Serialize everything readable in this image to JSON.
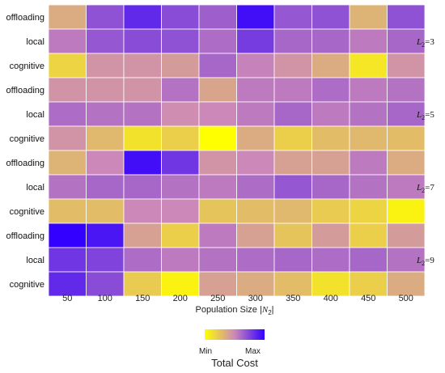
{
  "chart_data": {
    "type": "heatmap",
    "x_categories": [
      "50",
      "100",
      "150",
      "200",
      "250",
      "300",
      "350",
      "400",
      "450",
      "500"
    ],
    "row_categories": [
      "offloading",
      "local",
      "cognitive"
    ],
    "xlabel_prefix": "Population Size |",
    "xlabel_var": "N",
    "xlabel_sub": "2",
    "xlabel_suffix": "|",
    "panel_var": "L",
    "panel_sub": "2",
    "value_scale": "normalized cost, 0 = Min, 1 = Max",
    "panels": [
      {
        "label_value": "=3",
        "rows": [
          [
            0.35,
            0.7,
            0.85,
            0.72,
            0.65,
            0.95,
            0.68,
            0.7,
            0.32,
            0.7
          ],
          [
            0.55,
            0.68,
            0.72,
            0.7,
            0.6,
            0.78,
            0.62,
            0.62,
            0.55,
            0.62
          ],
          [
            0.18,
            0.45,
            0.45,
            0.42,
            0.62,
            0.52,
            0.45,
            0.35,
            0.1,
            0.45
          ]
        ]
      },
      {
        "label_value": "=5",
        "rows": [
          [
            0.45,
            0.45,
            0.45,
            0.58,
            0.38,
            0.55,
            0.55,
            0.6,
            0.55,
            0.58
          ],
          [
            0.6,
            0.58,
            0.58,
            0.48,
            0.5,
            0.55,
            0.62,
            0.55,
            0.58,
            0.62
          ],
          [
            0.45,
            0.3,
            0.12,
            0.2,
            0.0,
            0.35,
            0.2,
            0.28,
            0.3,
            0.28
          ]
        ]
      },
      {
        "label_value": "=7",
        "rows": [
          [
            0.32,
            0.5,
            0.95,
            0.8,
            0.45,
            0.5,
            0.4,
            0.4,
            0.55,
            0.35
          ],
          [
            0.58,
            0.62,
            0.62,
            0.58,
            0.55,
            0.6,
            0.68,
            0.62,
            0.58,
            0.55
          ],
          [
            0.28,
            0.28,
            0.5,
            0.5,
            0.25,
            0.28,
            0.3,
            0.22,
            0.18,
            0.05
          ]
        ]
      },
      {
        "label_value": "=9",
        "rows": [
          [
            1.0,
            0.92,
            0.4,
            0.2,
            0.55,
            0.4,
            0.25,
            0.42,
            0.2,
            0.42
          ],
          [
            0.8,
            0.75,
            0.6,
            0.55,
            0.58,
            0.6,
            0.62,
            0.6,
            0.62,
            0.58
          ],
          [
            0.85,
            0.72,
            0.22,
            0.05,
            0.4,
            0.35,
            0.28,
            0.12,
            0.2,
            0.35
          ]
        ]
      }
    ],
    "colorbar": {
      "min_label": "Min",
      "max_label": "Max",
      "title": "Total Cost",
      "colors": [
        "#ffff00",
        "#cc88b8",
        "#3300ff"
      ]
    }
  }
}
